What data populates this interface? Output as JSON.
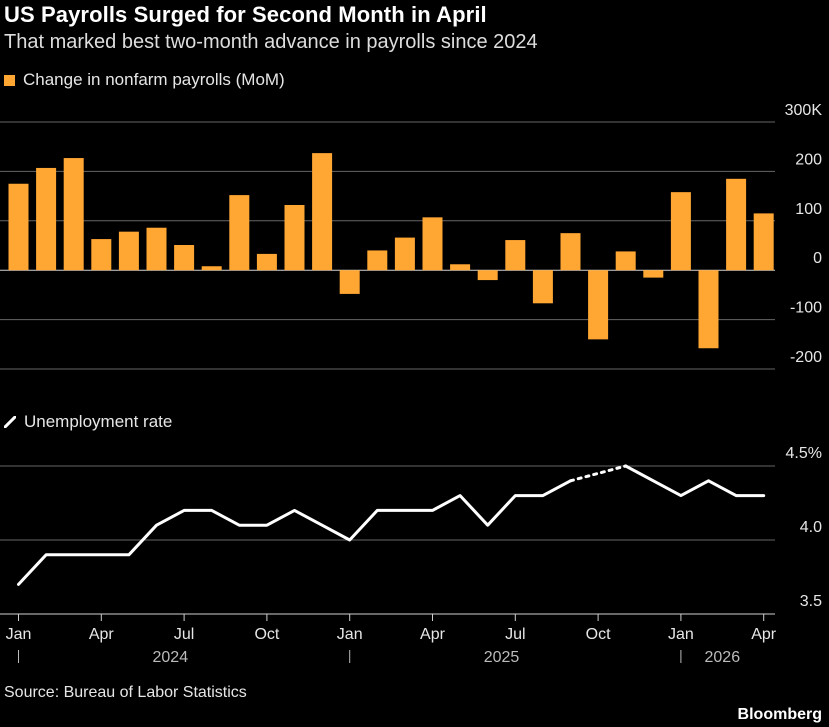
{
  "title": "US Payrolls Surged for Second Month in April",
  "subtitle": "That marked best two-month advance in payrolls since 2024",
  "legend_bar": "Change in nonfarm payrolls (MoM)",
  "legend_line": "Unemployment rate",
  "source": "Source: Bureau of Labor Statistics",
  "brand": "Bloomberg",
  "colors": {
    "bar": "#ffa633",
    "line": "#ffffff",
    "grid": "#666666",
    "background": "#000000"
  },
  "chart_data": [
    {
      "type": "bar",
      "legend": "Change in nonfarm payrolls (MoM)",
      "categories": [
        "2024-01",
        "2024-02",
        "2024-03",
        "2024-04",
        "2024-05",
        "2024-06",
        "2024-07",
        "2024-08",
        "2024-09",
        "2024-10",
        "2024-11",
        "2024-12",
        "2025-01",
        "2025-02",
        "2025-03",
        "2025-04",
        "2025-05",
        "2025-06",
        "2025-07",
        "2025-08",
        "2025-09",
        "2025-10",
        "2025-11",
        "2025-12",
        "2026-01",
        "2026-02",
        "2026-03",
        "2026-04"
      ],
      "values": [
        175,
        207,
        227,
        63,
        78,
        86,
        51,
        8,
        152,
        33,
        132,
        237,
        -48,
        40,
        66,
        107,
        12,
        -20,
        61,
        -67,
        75,
        -140,
        38,
        -15,
        158,
        -158,
        185,
        115
      ],
      "ylim": [
        -200,
        300
      ],
      "yticks": [
        -200,
        -100,
        0,
        100,
        200,
        300
      ],
      "ytick_labels": [
        "-200",
        "-100",
        "0",
        "100",
        "200",
        "300K"
      ]
    },
    {
      "type": "line",
      "legend": "Unemployment rate",
      "values": [
        3.7,
        3.9,
        3.9,
        3.9,
        3.9,
        4.1,
        4.2,
        4.2,
        4.1,
        4.1,
        4.2,
        4.1,
        4.0,
        4.2,
        4.2,
        4.2,
        4.3,
        4.1,
        4.3,
        4.3,
        4.4,
        null,
        4.5,
        4.4,
        4.3,
        4.4,
        4.3,
        4.3
      ],
      "ylim": [
        3.5,
        4.5
      ],
      "yticks": [
        3.5,
        4.0,
        4.5
      ],
      "ytick_labels": [
        "3.5",
        "4.0",
        "4.5%"
      ]
    }
  ],
  "x_axis": {
    "month_ticks": [
      {
        "index": 0,
        "label": "Jan"
      },
      {
        "index": 3,
        "label": "Apr"
      },
      {
        "index": 6,
        "label": "Jul"
      },
      {
        "index": 9,
        "label": "Oct"
      },
      {
        "index": 12,
        "label": "Jan"
      },
      {
        "index": 15,
        "label": "Apr"
      },
      {
        "index": 18,
        "label": "Jul"
      },
      {
        "index": 21,
        "label": "Oct"
      },
      {
        "index": 24,
        "label": "Jan"
      },
      {
        "index": 27,
        "label": "Apr"
      }
    ],
    "years": [
      {
        "label": "2024",
        "start": 0,
        "end": 11
      },
      {
        "label": "2025",
        "start": 12,
        "end": 23
      },
      {
        "label": "2026",
        "start": 24,
        "end": 27
      }
    ]
  }
}
